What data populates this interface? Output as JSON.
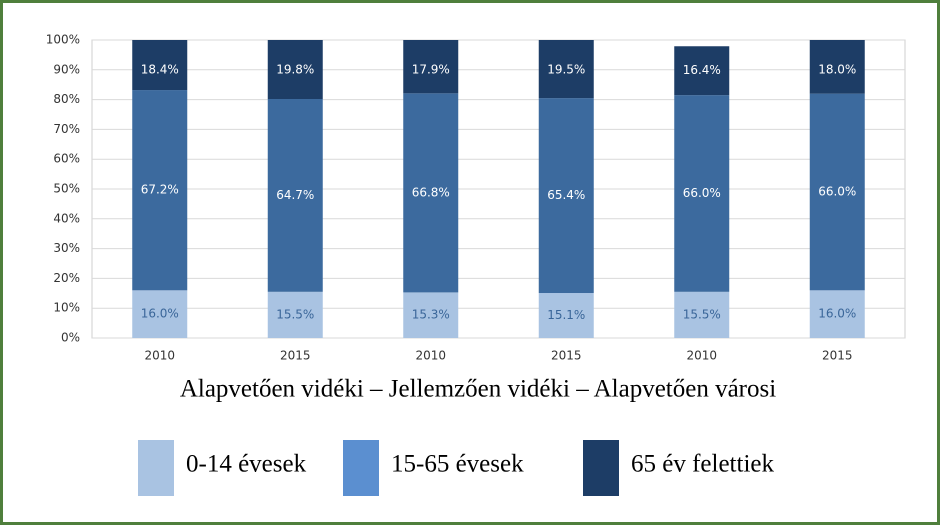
{
  "chart_data": {
    "type": "stacked-bar",
    "xlabel": "Alapvetően vidéki – Jellemzően vidéki – Alapvetően városi",
    "categories": [
      "2010",
      "2015",
      "2010",
      "2015",
      "2010",
      "2015"
    ],
    "series": [
      {
        "name": "0-14 évesek",
        "color": "#a9c3e2",
        "label_color": "#3a6699",
        "values": [
          16.0,
          15.5,
          15.3,
          15.1,
          15.5,
          16.0
        ],
        "value_labels": [
          "16.0%",
          "15.5%",
          "15.3%",
          "15.1%",
          "15.5%",
          "16.0%"
        ]
      },
      {
        "name": "15-65 évesek",
        "color": "#3c6a9e",
        "legend_color": "#5b8fd0",
        "label_color": "#ffffff",
        "values": [
          67.2,
          64.7,
          66.8,
          65.4,
          66.0,
          66.0
        ],
        "value_labels": [
          "67.2%",
          "64.7%",
          "66.8%",
          "65.4%",
          "66.0%",
          "66.0%"
        ]
      },
      {
        "name": "65 év felettiek",
        "color": "#1d3d66",
        "label_color": "#ffffff",
        "values": [
          18.4,
          19.8,
          17.9,
          19.5,
          16.4,
          18.0
        ],
        "value_labels": [
          "18.4%",
          "19.8%",
          "17.9%",
          "19.5%",
          "16.4%",
          "18.0%"
        ]
      }
    ],
    "ylim": [
      0,
      100
    ],
    "yticks": [
      {
        "value": 0,
        "label": "0%"
      },
      {
        "value": 10,
        "label": "10%"
      },
      {
        "value": 20,
        "label": "20%"
      },
      {
        "value": 30,
        "label": "30%"
      },
      {
        "value": 40,
        "label": "40%"
      },
      {
        "value": 50,
        "label": "50%"
      },
      {
        "value": 60,
        "label": "60%"
      },
      {
        "value": 70,
        "label": "70%"
      },
      {
        "value": 80,
        "label": "80%"
      },
      {
        "value": 90,
        "label": "90%"
      },
      {
        "value": 100,
        "label": "100%"
      }
    ],
    "grid": true
  }
}
